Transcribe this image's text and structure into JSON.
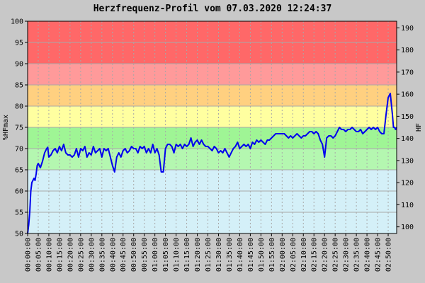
{
  "chart_data": {
    "type": "line",
    "title": "Herzfrequenz-Profil vom 07.03.2020 12:24:37",
    "ylabel_left": "%HFmax",
    "ylabel_right": "HF",
    "ylim_left": [
      50,
      100
    ],
    "ylim_right": [
      97,
      193
    ],
    "yticks_left": [
      50,
      55,
      60,
      65,
      70,
      75,
      80,
      85,
      90,
      95,
      100
    ],
    "yticks_right": [
      100,
      110,
      120,
      130,
      140,
      150,
      160,
      170,
      180,
      190
    ],
    "xlim_minutes": [
      0,
      174
    ],
    "xtick_labels": [
      "00:00:00",
      "00:05:00",
      "00:10:00",
      "00:15:00",
      "00:20:00",
      "00:25:00",
      "00:30:00",
      "00:35:00",
      "00:40:00",
      "00:45:00",
      "00:50:00",
      "00:55:00",
      "01:00:00",
      "01:05:00",
      "01:10:00",
      "01:15:00",
      "01:20:00",
      "01:25:00",
      "01:30:00",
      "01:35:00",
      "01:40:00",
      "01:45:00",
      "01:50:00",
      "01:55:00",
      "02:00:00",
      "02:05:00",
      "02:10:00",
      "02:15:00",
      "02:20:00",
      "02:25:00",
      "02:30:00",
      "02:35:00",
      "02:40:00",
      "02:45:00",
      "02:50:00"
    ],
    "grid": true,
    "zones": [
      {
        "from": 50,
        "to": 65,
        "color": "#d4f0f8"
      },
      {
        "from": 65,
        "to": 70,
        "color": "#b4f7b0"
      },
      {
        "from": 70,
        "to": 75,
        "color": "#9ff595"
      },
      {
        "from": 75,
        "to": 80,
        "color": "#ffffa0"
      },
      {
        "from": 80,
        "to": 85,
        "color": "#ffd080"
      },
      {
        "from": 85,
        "to": 90,
        "color": "#ff9a9a"
      },
      {
        "from": 90,
        "to": 100,
        "color": "#ff6868"
      }
    ],
    "series": [
      {
        "color": "#0000ee",
        "points": [
          [
            0,
            50
          ],
          [
            0.5,
            52
          ],
          [
            1,
            55
          ],
          [
            1.5,
            60
          ],
          [
            2,
            62
          ],
          [
            3,
            63
          ],
          [
            3.5,
            62.5
          ],
          [
            4,
            64
          ],
          [
            4.5,
            66
          ],
          [
            5,
            66.5
          ],
          [
            5.5,
            66
          ],
          [
            6,
            65.5
          ],
          [
            7,
            67
          ],
          [
            8,
            69
          ],
          [
            9,
            70
          ],
          [
            9.5,
            70.3
          ],
          [
            10,
            68
          ],
          [
            11,
            68.5
          ],
          [
            12,
            69.5
          ],
          [
            13,
            70
          ],
          [
            14,
            69
          ],
          [
            15,
            70.5
          ],
          [
            16,
            69.5
          ],
          [
            17,
            71
          ],
          [
            18,
            69
          ],
          [
            19,
            68.5
          ],
          [
            20,
            68.5
          ],
          [
            21,
            68
          ],
          [
            22,
            68.5
          ],
          [
            23,
            70
          ],
          [
            24,
            68
          ],
          [
            25,
            70
          ],
          [
            26,
            69.5
          ],
          [
            27,
            70.5
          ],
          [
            28,
            68
          ],
          [
            29,
            69
          ],
          [
            30,
            68.5
          ],
          [
            31,
            70.5
          ],
          [
            32,
            69
          ],
          [
            33,
            69.5
          ],
          [
            34,
            70
          ],
          [
            35,
            68
          ],
          [
            36,
            70
          ],
          [
            37,
            69.5
          ],
          [
            38,
            70
          ],
          [
            39,
            68
          ],
          [
            40,
            66
          ],
          [
            41,
            64.5
          ],
          [
            42,
            68
          ],
          [
            43,
            69
          ],
          [
            44,
            68
          ],
          [
            45,
            69.5
          ],
          [
            46,
            70
          ],
          [
            47,
            69
          ],
          [
            48,
            69.5
          ],
          [
            49,
            70.5
          ],
          [
            50,
            70
          ],
          [
            51,
            70
          ],
          [
            52,
            69
          ],
          [
            53,
            70.5
          ],
          [
            54,
            70
          ],
          [
            55,
            70.5
          ],
          [
            56,
            69
          ],
          [
            57,
            70
          ],
          [
            58,
            69
          ],
          [
            59,
            71
          ],
          [
            60,
            69
          ],
          [
            61,
            70
          ],
          [
            62,
            68.5
          ],
          [
            63,
            64.5
          ],
          [
            64,
            64.5
          ],
          [
            65,
            70
          ],
          [
            66,
            71
          ],
          [
            67,
            71
          ],
          [
            68,
            70.5
          ],
          [
            69,
            69
          ],
          [
            70,
            71
          ],
          [
            71,
            70.5
          ],
          [
            72,
            71
          ],
          [
            73,
            70
          ],
          [
            74,
            71
          ],
          [
            75,
            70.5
          ],
          [
            76,
            71
          ],
          [
            77,
            72.5
          ],
          [
            78,
            70.5
          ],
          [
            79,
            71.5
          ],
          [
            80,
            72
          ],
          [
            81,
            71
          ],
          [
            82,
            72
          ],
          [
            83,
            71
          ],
          [
            84,
            70.5
          ],
          [
            85,
            70.5
          ],
          [
            86,
            70
          ],
          [
            87,
            69.5
          ],
          [
            88,
            70.5
          ],
          [
            89,
            70
          ],
          [
            90,
            69
          ],
          [
            91,
            69.5
          ],
          [
            92,
            69
          ],
          [
            93,
            70
          ],
          [
            94,
            69
          ],
          [
            95,
            68
          ],
          [
            96,
            69
          ],
          [
            97,
            70
          ],
          [
            98,
            70.5
          ],
          [
            99,
            71.5
          ],
          [
            100,
            70
          ],
          [
            101,
            70.5
          ],
          [
            102,
            71
          ],
          [
            103,
            70.5
          ],
          [
            104,
            71
          ],
          [
            105,
            70
          ],
          [
            106,
            71.5
          ],
          [
            107,
            71
          ],
          [
            108,
            72
          ],
          [
            109,
            71.5
          ],
          [
            110,
            72
          ],
          [
            111,
            71.5
          ],
          [
            112,
            71
          ],
          [
            113,
            72
          ],
          [
            114,
            72
          ],
          [
            115,
            72.5
          ],
          [
            116,
            73
          ],
          [
            117,
            73.5
          ],
          [
            118,
            73.5
          ],
          [
            119,
            73.5
          ],
          [
            120,
            73.5
          ],
          [
            121,
            73.5
          ],
          [
            122,
            73
          ],
          [
            123,
            72.5
          ],
          [
            124,
            73
          ],
          [
            125,
            72.5
          ],
          [
            126,
            73
          ],
          [
            127,
            73.5
          ],
          [
            128,
            73
          ],
          [
            129,
            72.5
          ],
          [
            130,
            73
          ],
          [
            131,
            73
          ],
          [
            132,
            73.5
          ],
          [
            133,
            74
          ],
          [
            134,
            74
          ],
          [
            135,
            73.5
          ],
          [
            136,
            74
          ],
          [
            137,
            73.5
          ],
          [
            138,
            72
          ],
          [
            139,
            71
          ],
          [
            140,
            68
          ],
          [
            141,
            72.5
          ],
          [
            142,
            73
          ],
          [
            143,
            73
          ],
          [
            144,
            72.5
          ],
          [
            145,
            73
          ],
          [
            146,
            74
          ],
          [
            147,
            75
          ],
          [
            148,
            74.5
          ],
          [
            149,
            74.5
          ],
          [
            150,
            74
          ],
          [
            151,
            74.5
          ],
          [
            152,
            74.5
          ],
          [
            153,
            75
          ],
          [
            154,
            74.5
          ],
          [
            155,
            74
          ],
          [
            156,
            74
          ],
          [
            157,
            74.5
          ],
          [
            158,
            73.5
          ],
          [
            159,
            74
          ],
          [
            160,
            74.5
          ],
          [
            161,
            75
          ],
          [
            162,
            74.5
          ],
          [
            163,
            75
          ],
          [
            164,
            74.5
          ],
          [
            165,
            75
          ],
          [
            166,
            74
          ],
          [
            167,
            73.5
          ],
          [
            168,
            73.5
          ],
          [
            169,
            78
          ],
          [
            170,
            82
          ],
          [
            171,
            83
          ],
          [
            172,
            78
          ],
          [
            172.5,
            75
          ],
          [
            173,
            75
          ],
          [
            173.5,
            74.5
          ],
          [
            174,
            75
          ]
        ]
      }
    ]
  }
}
